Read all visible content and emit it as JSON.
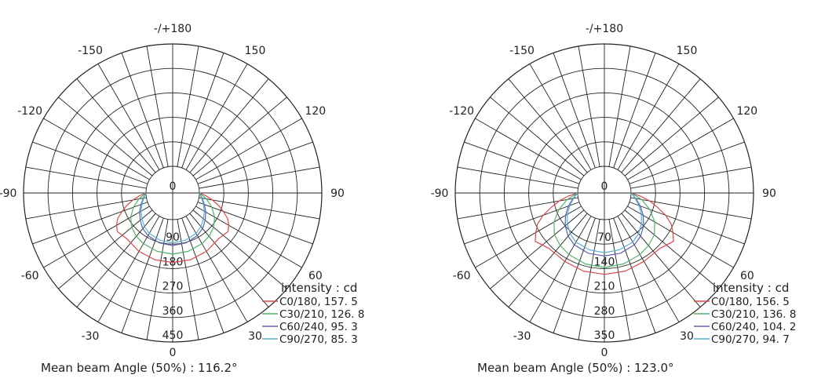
{
  "colors": {
    "grid": "#222222",
    "text": "#222222",
    "red": "#d9474c",
    "green": "#4fb26c",
    "blue": "#5b63b0",
    "teal": "#5aaed0"
  },
  "chart_data": [
    {
      "type": "polar-line",
      "angle_labels": [
        "-/+180",
        "150",
        "120",
        "90",
        "60",
        "30",
        "0",
        "-30",
        "-60",
        "-90",
        "-120",
        "-150"
      ],
      "radial_labels": [
        "0",
        "90",
        "180",
        "270",
        "360",
        "450"
      ],
      "radial_max": 450,
      "legend_title": "intensity : cd",
      "footer": "Mean beam Angle (50%) : 116.2°",
      "series": [
        {
          "name": "C0/180, 157.5",
          "label": "C0/180, 157. 5",
          "color": "red",
          "points": [
            [
              0,
              157.5
            ],
            [
              15,
              156
            ],
            [
              30,
              150
            ],
            [
              45,
              140
            ],
            [
              55,
              150
            ],
            [
              60,
              140
            ],
            [
              65,
              125
            ],
            [
              70,
              100
            ],
            [
              75,
              75
            ],
            [
              80,
              50
            ],
            [
              85,
              25
            ],
            [
              90,
              0
            ]
          ]
        },
        {
          "name": "C30/210, 126.8",
          "label": "C30/210, 126. 8",
          "color": "green",
          "points": [
            [
              0,
              126.8
            ],
            [
              15,
              124
            ],
            [
              30,
              117
            ],
            [
              40,
              110
            ],
            [
              50,
              98
            ],
            [
              60,
              80
            ],
            [
              70,
              55
            ],
            [
              80,
              28
            ],
            [
              90,
              0
            ]
          ]
        },
        {
          "name": "C60/240, 95.3",
          "label": "C60/240, 95. 3",
          "color": "blue",
          "points": [
            [
              0,
              95.3
            ],
            [
              15,
              92
            ],
            [
              30,
              83
            ],
            [
              40,
              73
            ],
            [
              50,
              58
            ],
            [
              60,
              42
            ],
            [
              70,
              26
            ],
            [
              80,
              12
            ],
            [
              90,
              0
            ]
          ]
        },
        {
          "name": "C90/270, 85.3",
          "label": "C90/270, 85. 3",
          "color": "teal",
          "points": [
            [
              0,
              85.3
            ],
            [
              15,
              82
            ],
            [
              30,
              74
            ],
            [
              40,
              63
            ],
            [
              50,
              50
            ],
            [
              60,
              36
            ],
            [
              70,
              22
            ],
            [
              80,
              10
            ],
            [
              90,
              0
            ]
          ]
        }
      ]
    },
    {
      "type": "polar-line",
      "angle_labels": [
        "-/+180",
        "150",
        "120",
        "90",
        "60",
        "30",
        "0",
        "-30",
        "-60",
        "-90",
        "-120",
        "-150"
      ],
      "radial_labels": [
        "0",
        "70",
        "140",
        "210",
        "280",
        "350"
      ],
      "radial_max": 350,
      "legend_title": "intensity : cd",
      "footer": "Mean beam Angle (50%) : 123.0°",
      "series": [
        {
          "name": "C0/180, 156.5",
          "label": "C0/180, 156. 5",
          "color": "red",
          "points": [
            [
              0,
              156.5
            ],
            [
              15,
              155
            ],
            [
              30,
              150
            ],
            [
              45,
              148
            ],
            [
              55,
              165
            ],
            [
              60,
              150
            ],
            [
              65,
              135
            ],
            [
              70,
              110
            ],
            [
              75,
              80
            ],
            [
              80,
              55
            ],
            [
              85,
              28
            ],
            [
              90,
              0
            ]
          ]
        },
        {
          "name": "C30/210, 136.8",
          "label": "C30/210, 136. 8",
          "color": "green",
          "points": [
            [
              0,
              136.8
            ],
            [
              15,
              134
            ],
            [
              30,
              127
            ],
            [
              40,
              120
            ],
            [
              50,
              110
            ],
            [
              60,
              90
            ],
            [
              70,
              62
            ],
            [
              80,
              32
            ],
            [
              90,
              0
            ]
          ]
        },
        {
          "name": "C60/240, 104.2",
          "label": "C60/240, 104. 2",
          "color": "blue",
          "points": [
            [
              0,
              104.2
            ],
            [
              15,
              102
            ],
            [
              30,
              95
            ],
            [
              40,
              85
            ],
            [
              50,
              70
            ],
            [
              60,
              52
            ],
            [
              70,
              33
            ],
            [
              80,
              15
            ],
            [
              90,
              0
            ]
          ]
        },
        {
          "name": "C90/270, 94.7",
          "label": "C90/270, 94. 7",
          "color": "teal",
          "points": [
            [
              0,
              94.7
            ],
            [
              15,
              92
            ],
            [
              30,
              86
            ],
            [
              40,
              76
            ],
            [
              50,
              62
            ],
            [
              60,
              46
            ],
            [
              70,
              29
            ],
            [
              80,
              13
            ],
            [
              90,
              0
            ]
          ]
        }
      ]
    }
  ]
}
